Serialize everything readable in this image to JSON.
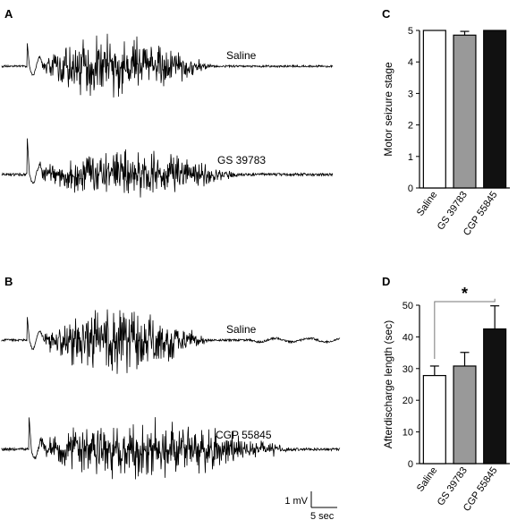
{
  "panels": {
    "A": {
      "letter": "A",
      "traces": [
        {
          "label": "Saline"
        },
        {
          "label": "GS 39783"
        }
      ]
    },
    "B": {
      "letter": "B",
      "traces": [
        {
          "label": "Saline"
        },
        {
          "label": "CGP 55845"
        }
      ]
    },
    "C": {
      "letter": "C"
    },
    "D": {
      "letter": "D"
    }
  },
  "scale_bar": {
    "voltage_label": "1 mV",
    "time_label": "5 sec"
  },
  "chart_data": [
    {
      "panel": "C",
      "type": "bar",
      "categories": [
        "Saline",
        "GS 39783",
        "CGP 55845"
      ],
      "values": [
        5.0,
        4.85,
        5.0
      ],
      "errors": [
        0,
        0.12,
        0
      ],
      "bar_colors": [
        "#ffffff",
        "#999999",
        "#111111"
      ],
      "ylabel": "Motor seizure stage",
      "ylim": [
        0,
        5
      ],
      "yticks": [
        0,
        1,
        2,
        3,
        4,
        5
      ],
      "grid": false
    },
    {
      "panel": "D",
      "type": "bar",
      "categories": [
        "Saline",
        "GS 39783",
        "CGP 55845"
      ],
      "values": [
        27.8,
        30.8,
        42.5
      ],
      "errors": [
        3.0,
        4.3,
        7.3
      ],
      "bar_colors": [
        "#ffffff",
        "#999999",
        "#111111"
      ],
      "ylabel": "Afterdischarge length (sec)",
      "ylim": [
        0,
        50
      ],
      "yticks": [
        0,
        10,
        20,
        30,
        40,
        50
      ],
      "grid": false,
      "significance": {
        "from": "Saline",
        "to": "CGP 55845",
        "marker": "*"
      }
    }
  ]
}
